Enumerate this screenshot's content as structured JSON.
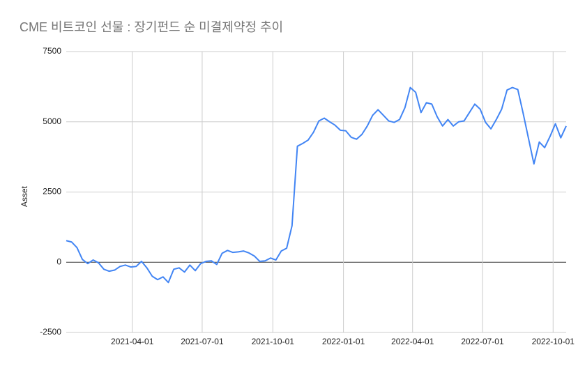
{
  "chart_data": {
    "type": "line",
    "title": "CME 비트코인 선물 : 장기펀드 순 미결제약정 추이",
    "y_label": "Asset",
    "x": [
      "2021-01-05",
      "2021-01-12",
      "2021-01-19",
      "2021-01-26",
      "2021-02-02",
      "2021-02-09",
      "2021-02-16",
      "2021-02-23",
      "2021-03-02",
      "2021-03-09",
      "2021-03-16",
      "2021-03-23",
      "2021-03-30",
      "2021-04-06",
      "2021-04-13",
      "2021-04-20",
      "2021-04-27",
      "2021-05-04",
      "2021-05-11",
      "2021-05-18",
      "2021-05-25",
      "2021-06-01",
      "2021-06-08",
      "2021-06-15",
      "2021-06-22",
      "2021-06-29",
      "2021-07-06",
      "2021-07-13",
      "2021-07-20",
      "2021-07-27",
      "2021-08-03",
      "2021-08-10",
      "2021-08-17",
      "2021-08-24",
      "2021-08-31",
      "2021-09-07",
      "2021-09-14",
      "2021-09-21",
      "2021-09-28",
      "2021-10-05",
      "2021-10-12",
      "2021-10-19",
      "2021-10-26",
      "2021-11-02",
      "2021-11-09",
      "2021-11-16",
      "2021-11-23",
      "2021-11-30",
      "2021-12-07",
      "2021-12-14",
      "2021-12-21",
      "2021-12-28",
      "2022-01-04",
      "2022-01-11",
      "2022-01-18",
      "2022-01-25",
      "2022-02-01",
      "2022-02-08",
      "2022-02-15",
      "2022-02-22",
      "2022-03-01",
      "2022-03-08",
      "2022-03-15",
      "2022-03-22",
      "2022-03-29",
      "2022-04-05",
      "2022-04-12",
      "2022-04-19",
      "2022-04-26",
      "2022-05-03",
      "2022-05-10",
      "2022-05-17",
      "2022-05-24",
      "2022-05-31",
      "2022-06-07",
      "2022-06-14",
      "2022-06-21",
      "2022-06-28",
      "2022-07-05",
      "2022-07-12",
      "2022-07-19",
      "2022-07-26",
      "2022-08-02",
      "2022-08-09",
      "2022-08-16",
      "2022-08-23",
      "2022-08-30",
      "2022-09-06",
      "2022-09-13",
      "2022-09-20",
      "2022-09-27",
      "2022-10-04",
      "2022-10-11",
      "2022-10-18"
    ],
    "series": [
      {
        "name": "Asset",
        "color": "#4285f4",
        "values": [
          770,
          720,
          520,
          100,
          -50,
          80,
          -20,
          -250,
          -320,
          -280,
          -150,
          -100,
          -170,
          -150,
          30,
          -200,
          -500,
          -620,
          -520,
          -720,
          -250,
          -200,
          -350,
          -100,
          -300,
          -50,
          30,
          50,
          -80,
          320,
          420,
          350,
          370,
          400,
          330,
          220,
          30,
          50,
          150,
          80,
          400,
          500,
          1300,
          4130,
          4230,
          4350,
          4630,
          5030,
          5130,
          5000,
          4880,
          4700,
          4680,
          4450,
          4380,
          4550,
          4850,
          5230,
          5430,
          5230,
          5030,
          4980,
          5080,
          5500,
          6220,
          6050,
          5330,
          5680,
          5630,
          5180,
          4850,
          5080,
          4850,
          5000,
          5030,
          5330,
          5630,
          5450,
          4980,
          4750,
          5080,
          5450,
          6130,
          6220,
          6150,
          5300,
          4400,
          3500,
          4280,
          4080,
          4480,
          4930,
          4430,
          4850
        ]
      }
    ],
    "xlim": [
      "2021-01-05",
      "2022-10-18"
    ],
    "xticks": [
      "2021-04-01",
      "2021-07-01",
      "2021-10-01",
      "2022-01-01",
      "2022-04-01",
      "2022-07-01",
      "2022-10-01"
    ],
    "ylim": [
      -2500,
      7500
    ],
    "yticks": [
      -2500,
      0,
      2500,
      5000,
      7500
    ],
    "grid": true
  }
}
